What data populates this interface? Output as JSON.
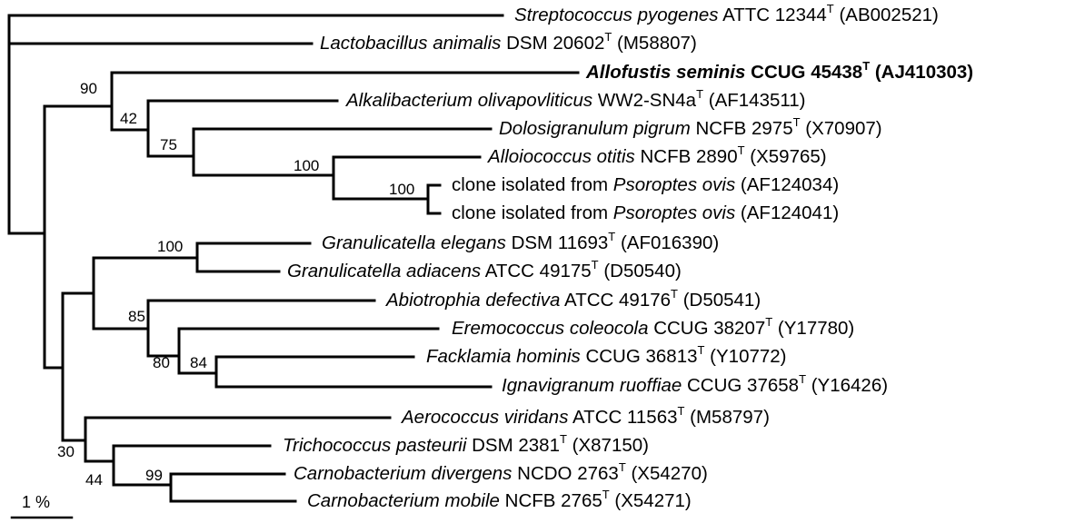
{
  "taxa": [
    {
      "id": "strep",
      "genus_species": "Streptococcus pyogenes",
      "strain": "ATTC 12344",
      "type_mark": "T",
      "accession": "(AB002521)"
    },
    {
      "id": "lacto",
      "genus_species": "Lactobacillus animalis",
      "strain": "DSM 20602",
      "type_mark": "T",
      "accession": "(M58807)"
    },
    {
      "id": "allo",
      "genus_species": "Allofustis seminis",
      "strain": "CCUG 45438",
      "type_mark": "T",
      "accession": "(AJ410303)"
    },
    {
      "id": "alkali",
      "genus_species": "Alkalibacterium olivapovliticus",
      "strain": "WW2-SN4a",
      "type_mark": "T",
      "accession": "(AF143511)"
    },
    {
      "id": "dolo",
      "genus_species": "Dolosigranulum pigrum",
      "strain": "NCFB 2975",
      "type_mark": "T",
      "accession": "(X70907)"
    },
    {
      "id": "alloio",
      "genus_species": "Alloiococcus otitis",
      "strain": "NCFB 2890",
      "type_mark": "T",
      "accession": "(X59765)"
    },
    {
      "id": "clone1",
      "prefix": "clone isolated from",
      "genus_species": "Psoroptes ovis",
      "accession": "(AF124034)"
    },
    {
      "id": "clone2",
      "prefix": "clone isolated from",
      "genus_species": "Psoroptes ovis",
      "accession": "(AF124041)"
    },
    {
      "id": "granel",
      "genus_species": "Granulicatella elegans",
      "strain": "DSM 11693",
      "type_mark": "T",
      "accession": "(AF016390)"
    },
    {
      "id": "granad",
      "genus_species": "Granulicatella adiacens",
      "strain": "ATCC 49175",
      "type_mark": "T",
      "accession": "(D50540)"
    },
    {
      "id": "abio",
      "genus_species": "Abiotrophia defectiva",
      "strain": "ATCC 49176",
      "type_mark": "T",
      "accession": "(D50541)"
    },
    {
      "id": "eremo",
      "genus_species": "Eremococcus coleocola",
      "strain": "CCUG 38207",
      "type_mark": "T",
      "accession": "(Y17780)"
    },
    {
      "id": "fack",
      "genus_species": "Facklamia hominis",
      "strain": "CCUG 36813",
      "type_mark": "T",
      "accession": "(Y10772)"
    },
    {
      "id": "igna",
      "genus_species": "Ignavigranum ruoffiae",
      "strain": "CCUG 37658",
      "type_mark": "T",
      "accession": "(Y16426)"
    },
    {
      "id": "aero",
      "genus_species": "Aerococcus viridans",
      "strain": "ATCC 11563",
      "type_mark": "T",
      "accession": "(M58797)"
    },
    {
      "id": "trich",
      "genus_species": "Trichococcus pasteurii",
      "strain": "DSM 2381",
      "type_mark": "T",
      "accession": "(X87150)"
    },
    {
      "id": "carnodiv",
      "genus_species": "Carnobacterium divergens",
      "strain": "NCDO 2763",
      "type_mark": "T",
      "accession": "(X54270)"
    },
    {
      "id": "carnomob",
      "genus_species": "Carnobacterium mobile",
      "strain": "NCFB 2765",
      "type_mark": "T",
      "accession": "(X54271)"
    }
  ],
  "support_values": {
    "n90": "90",
    "n42": "42",
    "n75": "75",
    "n100a": "100",
    "n100b": "100",
    "n100c": "100",
    "n85": "85",
    "n80": "80",
    "n84": "84",
    "n30": "30",
    "n44": "44",
    "n99": "99"
  },
  "scale_bar": {
    "label": "1 %"
  }
}
